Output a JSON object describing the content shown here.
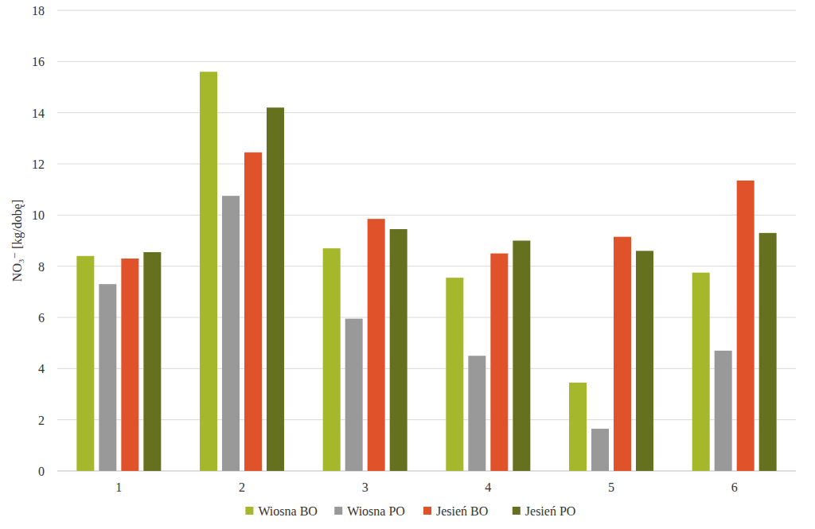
{
  "chart_data": {
    "type": "bar",
    "y_label": "NO₃⁻ [kg/dobę]",
    "categories": [
      "1",
      "2",
      "3",
      "4",
      "5",
      "6"
    ],
    "series": [
      {
        "name": "Wiosna BO",
        "color": "#a5b82c",
        "values": [
          8.4,
          15.6,
          8.7,
          7.55,
          3.45,
          7.75
        ]
      },
      {
        "name": "Wiosna PO",
        "color": "#999999",
        "values": [
          7.3,
          10.75,
          5.95,
          4.5,
          1.65,
          4.7
        ]
      },
      {
        "name": "Jesień BO",
        "color": "#e0532a",
        "values": [
          8.3,
          12.45,
          9.85,
          8.5,
          9.15,
          11.35
        ]
      },
      {
        "name": "Jesień PO",
        "color": "#66711f",
        "values": [
          8.55,
          14.2,
          9.45,
          9.0,
          8.6,
          9.3
        ]
      }
    ],
    "ylim": [
      0,
      18
    ],
    "yticks": [
      0,
      2,
      4,
      6,
      8,
      10,
      12,
      14,
      16,
      18
    ],
    "grid": true,
    "legend": "bottom"
  }
}
